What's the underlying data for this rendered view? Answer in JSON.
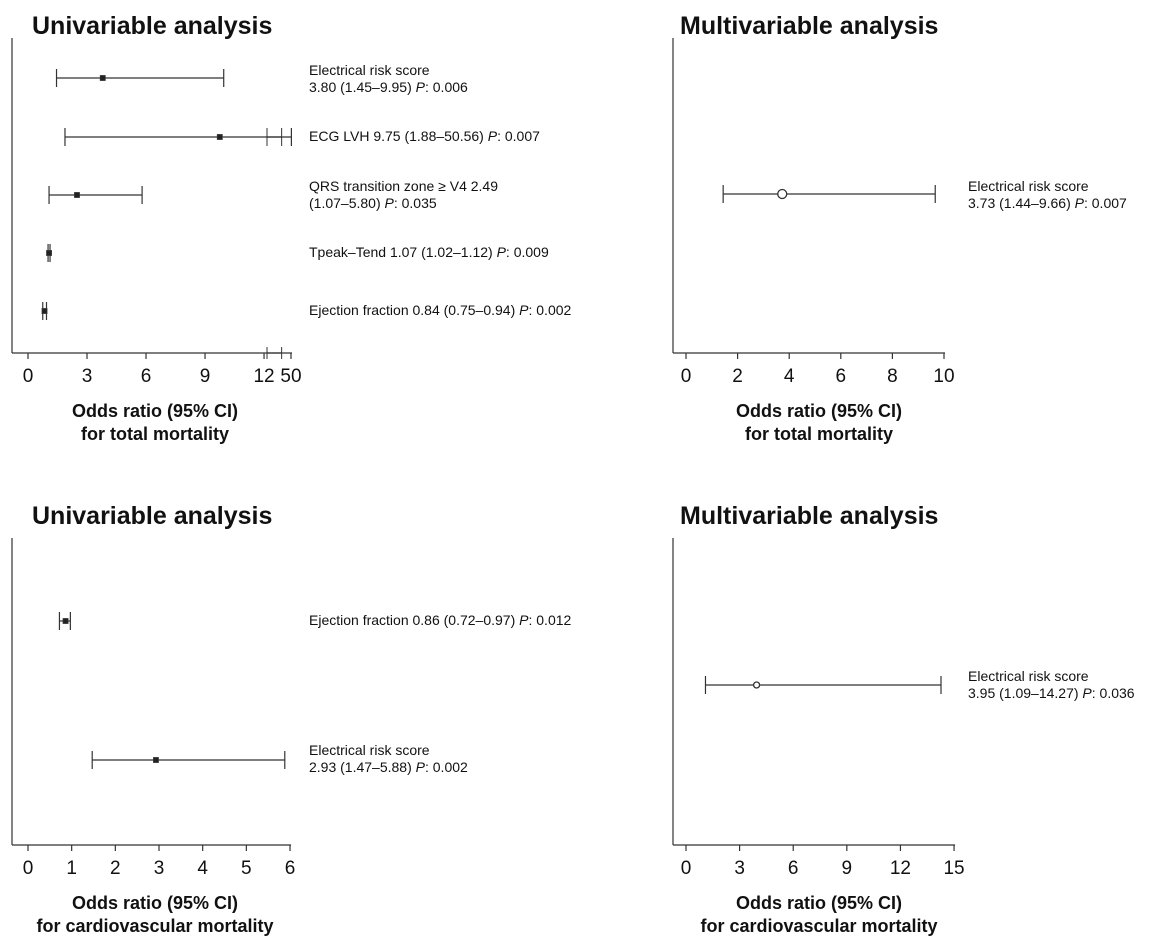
{
  "colors": {
    "ink": "#222222",
    "line": "#333333"
  },
  "chart_data": [
    {
      "type": "forest",
      "title": "Univariable analysis",
      "xlabel_line1": "Odds ratio (95% CI)",
      "xlabel_line2": "for total mortality",
      "xlim": [
        0,
        50
      ],
      "axis_break": [
        13.2,
        13.6
      ],
      "tick_labels": [
        "0",
        "3",
        "6",
        "9",
        "12",
        "50"
      ],
      "tick_values": [
        0,
        3,
        6,
        9,
        12,
        50
      ],
      "marker": "square",
      "rows": [
        {
          "label": "Electrical risk score",
          "stat_prefix": "3.80 (1.45–9.95) ",
          "p_text": "P",
          "p_value": ": 0.006",
          "or": 3.8,
          "lo": 1.45,
          "hi": 9.95,
          "two_line": true
        },
        {
          "label": "ECG LVH 9.75 (1.88–50.56) ",
          "stat_prefix": "",
          "p_text": "P",
          "p_value": ": 0.007",
          "or": 9.75,
          "lo": 1.88,
          "hi": 50.56,
          "two_line": false
        },
        {
          "label": "QRS transition zone ≥ V4 2.49",
          "stat_prefix": "(1.07–5.80) ",
          "p_text": "P",
          "p_value": ": 0.035",
          "or": 2.49,
          "lo": 1.07,
          "hi": 5.8,
          "two_line": true
        },
        {
          "label": "Tpeak–Tend 1.07 (1.02–1.12) ",
          "stat_prefix": "",
          "p_text": "P",
          "p_value": ": 0.009",
          "or": 1.07,
          "lo": 1.02,
          "hi": 1.12,
          "two_line": false
        },
        {
          "label": "Ejection fraction 0.84 (0.75–0.94) ",
          "stat_prefix": "",
          "p_text": "P",
          "p_value": ": 0.002",
          "or": 0.84,
          "lo": 0.75,
          "hi": 0.94,
          "two_line": false
        }
      ]
    },
    {
      "type": "forest",
      "title": "Multivariable analysis",
      "xlabel_line1": "Odds ratio (95% CI)",
      "xlabel_line2": "for total mortality",
      "xlim": [
        0,
        10
      ],
      "tick_labels": [
        "0",
        "2",
        "4",
        "6",
        "8",
        "10"
      ],
      "tick_values": [
        0,
        2,
        4,
        6,
        8,
        10
      ],
      "marker": "circle",
      "rows": [
        {
          "label": "Electrical risk score",
          "stat_prefix": "3.73 (1.44–9.66) ",
          "p_text": "P",
          "p_value": ": 0.007",
          "or": 3.73,
          "lo": 1.44,
          "hi": 9.66,
          "two_line": true
        }
      ]
    },
    {
      "type": "forest",
      "title": "Univariable analysis",
      "xlabel_line1": "Odds ratio (95% CI)",
      "xlabel_line2": "for cardiovascular mortality",
      "xlim": [
        0,
        6
      ],
      "tick_labels": [
        "0",
        "1",
        "2",
        "3",
        "4",
        "5",
        "6"
      ],
      "tick_values": [
        0,
        1,
        2,
        3,
        4,
        5,
        6
      ],
      "marker": "square",
      "rows": [
        {
          "label": "Ejection fraction 0.86 (0.72–0.97) ",
          "stat_prefix": "",
          "p_text": "P",
          "p_value": ": 0.012",
          "or": 0.86,
          "lo": 0.72,
          "hi": 0.97,
          "two_line": false
        },
        {
          "label": "Electrical risk score",
          "stat_prefix": "2.93 (1.47–5.88) ",
          "p_text": "P",
          "p_value": ": 0.002",
          "or": 2.93,
          "lo": 1.47,
          "hi": 5.88,
          "two_line": true
        }
      ]
    },
    {
      "type": "forest",
      "title": "Multivariable analysis",
      "xlabel_line1": "Odds ratio (95% CI)",
      "xlabel_line2": "for cardiovascular mortality",
      "xlim": [
        0,
        15
      ],
      "tick_labels": [
        "0",
        "3",
        "6",
        "9",
        "12",
        "15"
      ],
      "tick_values": [
        0,
        3,
        6,
        9,
        12,
        15
      ],
      "marker": "circle",
      "rows": [
        {
          "label": "Electrical risk score",
          "stat_prefix": "3.95 (1.09–14.27) ",
          "p_text": "P",
          "p_value": ": 0.036",
          "or": 3.95,
          "lo": 1.09,
          "hi": 14.27,
          "two_line": true
        }
      ]
    }
  ]
}
